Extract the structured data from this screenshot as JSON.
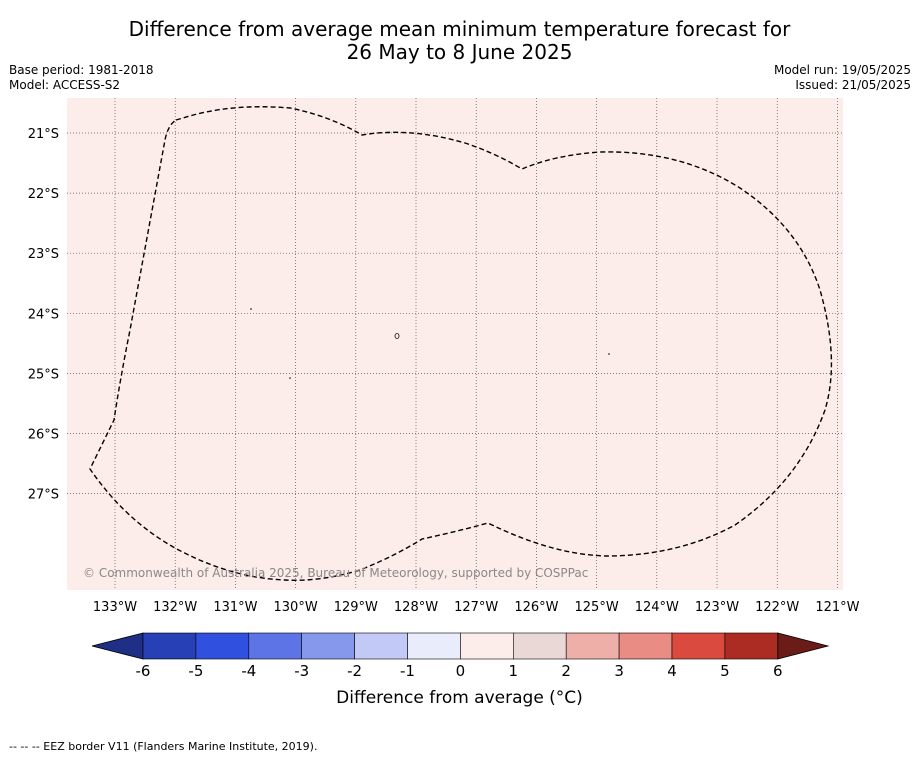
{
  "title": {
    "line1": "Difference from average mean minimum temperature forecast for",
    "line2": "26 May to 8 June 2025"
  },
  "meta_left": {
    "base_period": "Base period: 1981-2018",
    "model": "Model: ACCESS-S2"
  },
  "meta_right": {
    "model_run": "Model run: 19/05/2025",
    "issued": "Issued: 21/05/2025"
  },
  "map": {
    "background_color": "#fcecea",
    "lat_labels": [
      "21°S",
      "22°S",
      "23°S",
      "24°S",
      "25°S",
      "26°S",
      "27°S"
    ],
    "lon_labels": [
      "133°W",
      "132°W",
      "131°W",
      "130°W",
      "129°W",
      "128°W",
      "127°W",
      "126°W",
      "125°W",
      "124°W",
      "123°W",
      "122°W",
      "121°W"
    ],
    "copyright": "© Commonwealth of Australia 2025, Bureau of Meteorology, supported by COSPPac",
    "border_style": "dashed"
  },
  "colorbar": {
    "ticks": [
      "-6",
      "-5",
      "-4",
      "-3",
      "-2",
      "-1",
      "0",
      "1",
      "2",
      "3",
      "4",
      "5",
      "6"
    ],
    "colors": [
      "#1f2f86",
      "#2740b5",
      "#3050e0",
      "#5c74e6",
      "#8598ec",
      "#c2c9f6",
      "#e9ecfb",
      "#fcecea",
      "#ead8d6",
      "#eeafa9",
      "#e98c84",
      "#da4a3e",
      "#ac2b23",
      "#6c1c18"
    ],
    "label": "Difference from average (°C)"
  },
  "footer": "--  --  -- EEZ border V11 (Flanders Marine Institute, 2019)."
}
